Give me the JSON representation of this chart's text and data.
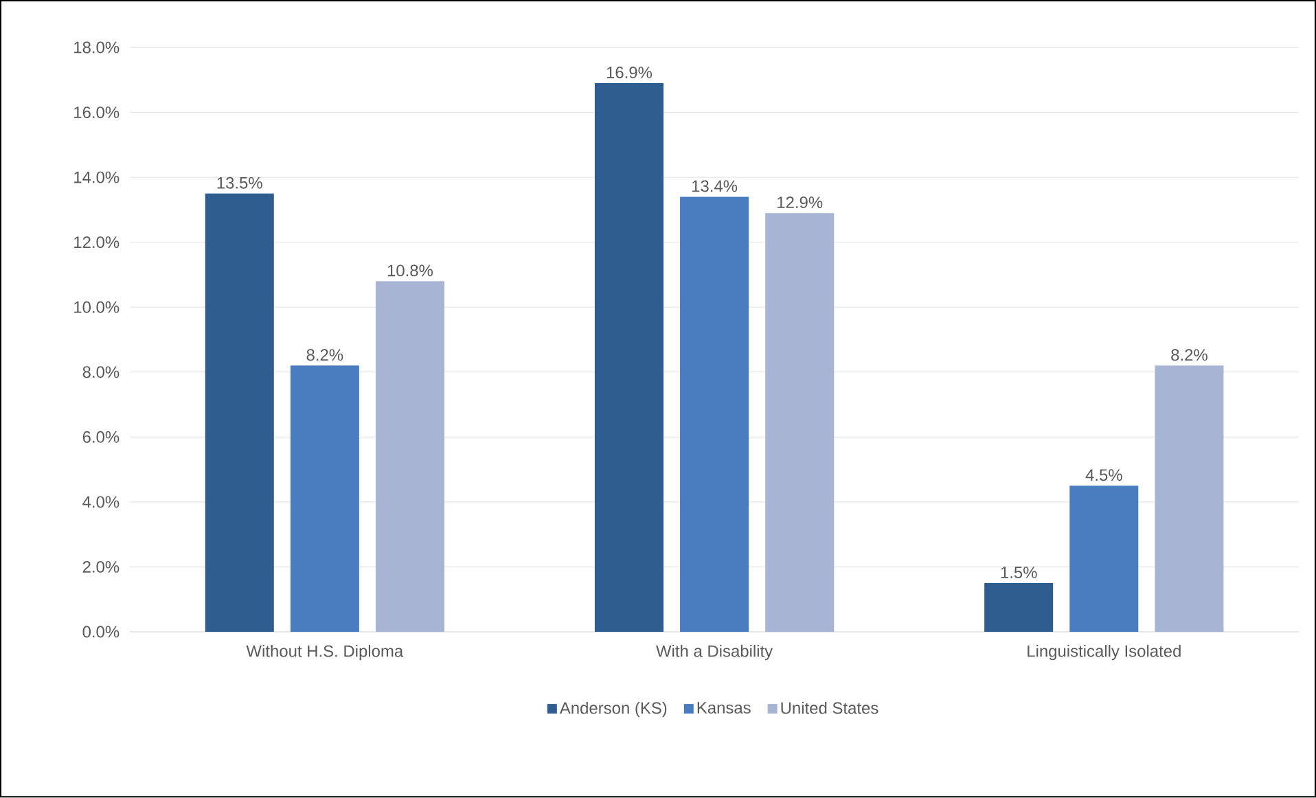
{
  "chart_data": {
    "type": "bar",
    "categories": [
      "Without H.S. Diploma",
      "With a Disability",
      "Linguistically Isolated"
    ],
    "series": [
      {
        "name": "Anderson (KS)",
        "color": "#2f5d8f",
        "values": [
          13.5,
          16.9,
          1.5
        ],
        "value_labels": [
          "13.5%",
          "16.9%",
          "1.5%"
        ]
      },
      {
        "name": "Kansas",
        "color": "#4a7dbf",
        "values": [
          8.2,
          13.4,
          4.5
        ],
        "value_labels": [
          "8.2%",
          "13.4%",
          "4.5%"
        ]
      },
      {
        "name": "United States",
        "color": "#a7b4d4",
        "values": [
          10.8,
          12.9,
          8.2
        ],
        "value_labels": [
          "10.8%",
          "12.9%",
          "8.2%"
        ]
      }
    ],
    "ylim": [
      0,
      18
    ],
    "yticks": [
      {
        "value": 0,
        "label": "0.0%"
      },
      {
        "value": 2,
        "label": "2.0%"
      },
      {
        "value": 4,
        "label": "4.0%"
      },
      {
        "value": 6,
        "label": "6.0%"
      },
      {
        "value": 8,
        "label": "8.0%"
      },
      {
        "value": 10,
        "label": "10.0%"
      },
      {
        "value": 12,
        "label": "12.0%"
      },
      {
        "value": 14,
        "label": "14.0%"
      },
      {
        "value": 16,
        "label": "16.0%"
      },
      {
        "value": 18,
        "label": "18.0%"
      }
    ],
    "grid": "y",
    "legend": "bottom"
  }
}
